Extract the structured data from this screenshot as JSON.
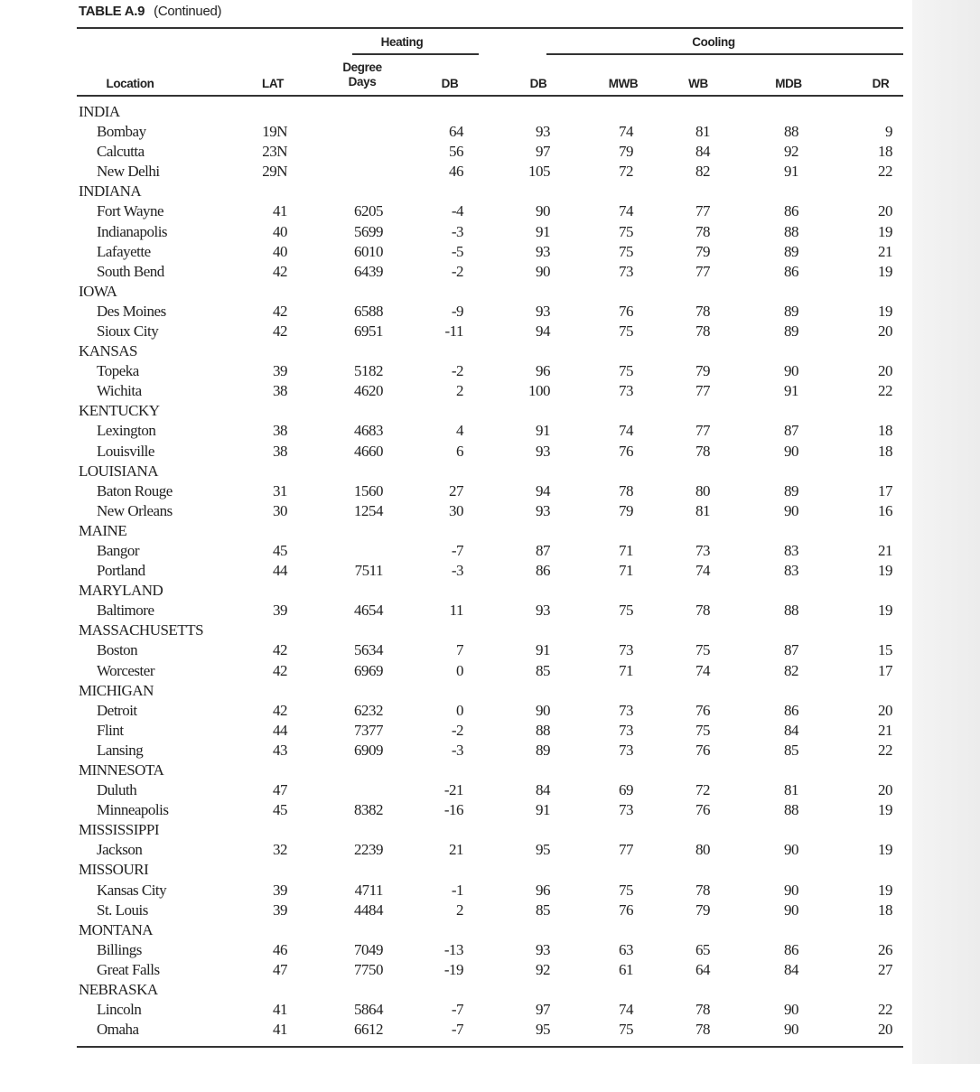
{
  "title": {
    "label": "TABLE A.9",
    "continued": "(Continued)"
  },
  "headers": {
    "heating_group": "Heating",
    "cooling_group": "Cooling",
    "location": "Location",
    "lat": "LAT",
    "degree_days": "Degree Days",
    "heating_db": "DB",
    "cooling_db": "DB",
    "mwb": "MWB",
    "wb": "WB",
    "mdb": "MDB",
    "dr": "DR"
  },
  "columns": [
    "lat",
    "degree_days",
    "heating_db",
    "cooling_db",
    "mwb",
    "wb",
    "mdb",
    "dr"
  ],
  "groups": [
    {
      "state": "INDIA",
      "cities": [
        [
          "Bombay",
          "19N",
          "",
          "64",
          "93",
          "74",
          "81",
          "88",
          "9"
        ],
        [
          "Calcutta",
          "23N",
          "",
          "56",
          "97",
          "79",
          "84",
          "92",
          "18"
        ],
        [
          "New Delhi",
          "29N",
          "",
          "46",
          "105",
          "72",
          "82",
          "91",
          "22"
        ]
      ]
    },
    {
      "state": "INDIANA",
      "cities": [
        [
          "Fort Wayne",
          "41",
          "6205",
          "-4",
          "90",
          "74",
          "77",
          "86",
          "20"
        ],
        [
          "Indianapolis",
          "40",
          "5699",
          "-3",
          "91",
          "75",
          "78",
          "88",
          "19"
        ],
        [
          "Lafayette",
          "40",
          "6010",
          "-5",
          "93",
          "75",
          "79",
          "89",
          "21"
        ],
        [
          "South Bend",
          "42",
          "6439",
          "-2",
          "90",
          "73",
          "77",
          "86",
          "19"
        ]
      ]
    },
    {
      "state": "IOWA",
      "cities": [
        [
          "Des Moines",
          "42",
          "6588",
          "-9",
          "93",
          "76",
          "78",
          "89",
          "19"
        ],
        [
          "Sioux City",
          "42",
          "6951",
          "-11",
          "94",
          "75",
          "78",
          "89",
          "20"
        ]
      ]
    },
    {
      "state": "KANSAS",
      "cities": [
        [
          "Topeka",
          "39",
          "5182",
          "-2",
          "96",
          "75",
          "79",
          "90",
          "20"
        ],
        [
          "Wichita",
          "38",
          "4620",
          "2",
          "100",
          "73",
          "77",
          "91",
          "22"
        ]
      ]
    },
    {
      "state": "KENTUCKY",
      "cities": [
        [
          "Lexington",
          "38",
          "4683",
          "4",
          "91",
          "74",
          "77",
          "87",
          "18"
        ],
        [
          "Louisville",
          "38",
          "4660",
          "6",
          "93",
          "76",
          "78",
          "90",
          "18"
        ]
      ]
    },
    {
      "state": "LOUISIANA",
      "cities": [
        [
          "Baton Rouge",
          "31",
          "1560",
          "27",
          "94",
          "78",
          "80",
          "89",
          "17"
        ],
        [
          "New Orleans",
          "30",
          "1254",
          "30",
          "93",
          "79",
          "81",
          "90",
          "16"
        ]
      ]
    },
    {
      "state": "MAINE",
      "cities": [
        [
          "Bangor",
          "45",
          "",
          "-7",
          "87",
          "71",
          "73",
          "83",
          "21"
        ],
        [
          "Portland",
          "44",
          "7511",
          "-3",
          "86",
          "71",
          "74",
          "83",
          "19"
        ]
      ]
    },
    {
      "state": "MARYLAND",
      "cities": [
        [
          "Baltimore",
          "39",
          "4654",
          "11",
          "93",
          "75",
          "78",
          "88",
          "19"
        ]
      ]
    },
    {
      "state": "MASSACHUSETTS",
      "cities": [
        [
          "Boston",
          "42",
          "5634",
          "7",
          "91",
          "73",
          "75",
          "87",
          "15"
        ],
        [
          "Worcester",
          "42",
          "6969",
          "0",
          "85",
          "71",
          "74",
          "82",
          "17"
        ]
      ]
    },
    {
      "state": "MICHIGAN",
      "cities": [
        [
          "Detroit",
          "42",
          "6232",
          "0",
          "90",
          "73",
          "76",
          "86",
          "20"
        ],
        [
          "Flint",
          "44",
          "7377",
          "-2",
          "88",
          "73",
          "75",
          "84",
          "21"
        ],
        [
          "Lansing",
          "43",
          "6909",
          "-3",
          "89",
          "73",
          "76",
          "85",
          "22"
        ]
      ]
    },
    {
      "state": "MINNESOTA",
      "cities": [
        [
          "Duluth",
          "47",
          "",
          "-21",
          "84",
          "69",
          "72",
          "81",
          "20"
        ],
        [
          "Minneapolis",
          "45",
          "8382",
          "-16",
          "91",
          "73",
          "76",
          "88",
          "19"
        ]
      ]
    },
    {
      "state": "MISSISSIPPI",
      "cities": [
        [
          "Jackson",
          "32",
          "2239",
          "21",
          "95",
          "77",
          "80",
          "90",
          "19"
        ]
      ]
    },
    {
      "state": "MISSOURI",
      "cities": [
        [
          "Kansas City",
          "39",
          "4711",
          "-1",
          "96",
          "75",
          "78",
          "90",
          "19"
        ],
        [
          "St. Louis",
          "39",
          "4484",
          "2",
          "85",
          "76",
          "79",
          "90",
          "18"
        ]
      ]
    },
    {
      "state": "MONTANA",
      "cities": [
        [
          "Billings",
          "46",
          "7049",
          "-13",
          "93",
          "63",
          "65",
          "86",
          "26"
        ],
        [
          "Great Falls",
          "47",
          "7750",
          "-19",
          "92",
          "61",
          "64",
          "84",
          "27"
        ]
      ]
    },
    {
      "state": "NEBRASKA",
      "cities": [
        [
          "Lincoln",
          "41",
          "5864",
          "-7",
          "97",
          "74",
          "78",
          "90",
          "22"
        ],
        [
          "Omaha",
          "41",
          "6612",
          "-7",
          "95",
          "75",
          "78",
          "90",
          "20"
        ]
      ]
    }
  ]
}
